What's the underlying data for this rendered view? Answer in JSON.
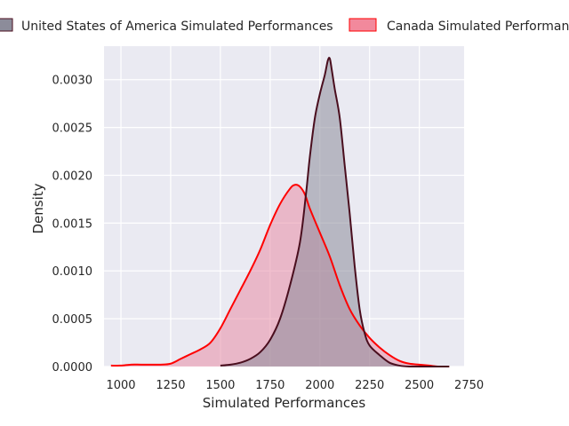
{
  "chart_data": {
    "type": "area",
    "chart_kind": "kde-density",
    "xlabel": "Simulated Performances",
    "ylabel": "Density",
    "xlim": [
      915,
      2725
    ],
    "ylim": [
      0,
      0.00335
    ],
    "x_ticks": [
      1000,
      1250,
      1500,
      1750,
      2000,
      2250,
      2500,
      2750
    ],
    "y_ticks": [
      0.0,
      0.0005,
      0.001,
      0.0015,
      0.002,
      0.0025,
      0.003
    ],
    "y_tick_labels": [
      "0.0000",
      "0.0005",
      "0.0010",
      "0.0015",
      "0.0020",
      "0.0025",
      "0.0030"
    ],
    "grid": true,
    "legend_placement": "top, above plot",
    "colors": {
      "plot_bg": "#EAEAF2",
      "grid": "#FFFFFF"
    },
    "series": [
      {
        "name": "United States of America Simulated Performances",
        "line_color": "#4A0E1E",
        "fill_color": "#8C8C9A",
        "x": [
          1500,
          1550,
          1600,
          1650,
          1700,
          1750,
          1800,
          1850,
          1900,
          1930,
          1950,
          1975,
          2000,
          2025,
          2040,
          2050,
          2060,
          2075,
          2100,
          2125,
          2150,
          2175,
          2200,
          2225,
          2250,
          2300,
          2350,
          2400,
          2450,
          2500,
          2550,
          2600,
          2650
        ],
        "y": [
          1e-05,
          2e-05,
          4e-05,
          8e-05,
          0.00015,
          0.00028,
          0.0005,
          0.00085,
          0.0013,
          0.0018,
          0.0022,
          0.0026,
          0.00285,
          0.00305,
          0.0032,
          0.00322,
          0.0031,
          0.0029,
          0.0026,
          0.0021,
          0.0016,
          0.00105,
          0.0006,
          0.00035,
          0.00022,
          0.00012,
          4e-05,
          1e-05,
          0.0,
          0.0,
          0.0,
          0.0,
          0.0
        ]
      },
      {
        "name": "Canada Simulated Performances",
        "line_color": "#FF0000",
        "fill_color": "#E78CA6",
        "x": [
          950,
          1000,
          1050,
          1100,
          1150,
          1200,
          1250,
          1300,
          1350,
          1400,
          1450,
          1500,
          1550,
          1600,
          1650,
          1700,
          1750,
          1800,
          1850,
          1875,
          1900,
          1925,
          1950,
          2000,
          2050,
          2100,
          2150,
          2200,
          2250,
          2300,
          2350,
          2400,
          2450,
          2500,
          2550,
          2600,
          2650
        ],
        "y": [
          1e-05,
          1e-05,
          2e-05,
          2e-05,
          2e-05,
          2e-05,
          3e-05,
          8e-05,
          0.00013,
          0.00018,
          0.00025,
          0.0004,
          0.0006,
          0.0008,
          0.001,
          0.00122,
          0.00148,
          0.0017,
          0.00186,
          0.0019,
          0.00188,
          0.0018,
          0.00165,
          0.0014,
          0.00115,
          0.00085,
          0.0006,
          0.00043,
          0.0003,
          0.0002,
          0.00012,
          6e-05,
          3e-05,
          2e-05,
          1e-05,
          0.0,
          0.0
        ]
      }
    ]
  }
}
